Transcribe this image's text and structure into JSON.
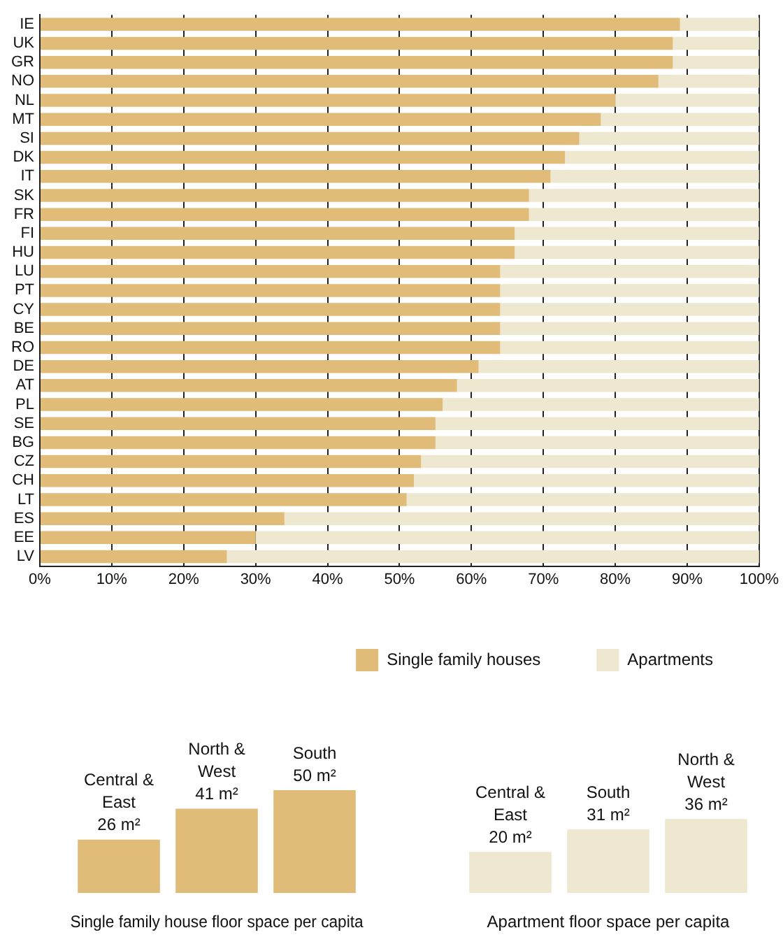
{
  "chart_data": [
    {
      "type": "bar",
      "orientation": "horizontal",
      "stacked": true,
      "grid": "x",
      "legend": "bottom right",
      "categories": [
        "IE",
        "UK",
        "GR",
        "NO",
        "NL",
        "MT",
        "SI",
        "DK",
        "IT",
        "SK",
        "FR",
        "FI",
        "HU",
        "LU",
        "PT",
        "CY",
        "BE",
        "RO",
        "DE",
        "AT",
        "PL",
        "SE",
        "BG",
        "CZ",
        "CH",
        "LT",
        "ES",
        "EE",
        "LV"
      ],
      "series": [
        {
          "name": "Single family houses",
          "color": "#e1bb78",
          "values": [
            89,
            88,
            88,
            86,
            80,
            78,
            75,
            73,
            71,
            68,
            68,
            66,
            66,
            64,
            64,
            64,
            64,
            64,
            61,
            58,
            56,
            55,
            55,
            53,
            52,
            51,
            34,
            30,
            26
          ]
        },
        {
          "name": "Apartments",
          "color": "#ede8cf",
          "values": [
            11,
            12,
            12,
            14,
            20,
            22,
            25,
            27,
            29,
            32,
            32,
            34,
            34,
            36,
            36,
            36,
            36,
            36,
            39,
            42,
            44,
            45,
            45,
            47,
            48,
            49,
            66,
            70,
            74
          ]
        }
      ],
      "xlim": [
        0,
        100
      ],
      "xticks": [
        {
          "value": 0,
          "label": "0%"
        },
        {
          "value": 10,
          "label": "10%"
        },
        {
          "value": 20,
          "label": "20%"
        },
        {
          "value": 30,
          "label": "30%"
        },
        {
          "value": 40,
          "label": "40%"
        },
        {
          "value": 50,
          "label": "50%"
        },
        {
          "value": 60,
          "label": "60%"
        },
        {
          "value": 70,
          "label": "70%"
        },
        {
          "value": 80,
          "label": "80%"
        },
        {
          "value": 90,
          "label": "90%"
        },
        {
          "value": 100,
          "label": "100%"
        }
      ]
    },
    {
      "type": "bar",
      "title": "Single family house floor space per capita",
      "tick_labels": false,
      "categories": [
        "Central & East",
        "North & West",
        "South"
      ],
      "values": [
        26,
        41,
        50
      ],
      "color": "#e1bb78",
      "value_labels": [
        "26 m²",
        "41 m²",
        "50 m²"
      ]
    },
    {
      "type": "bar",
      "title": "Apartment floor space per capita",
      "tick_labels": false,
      "categories": [
        "Central & East",
        "South",
        "North & West"
      ],
      "values": [
        20,
        31,
        36
      ],
      "color": "#ede8cf",
      "value_labels": [
        "20 m²",
        "31 m²",
        "36 m²"
      ]
    }
  ]
}
